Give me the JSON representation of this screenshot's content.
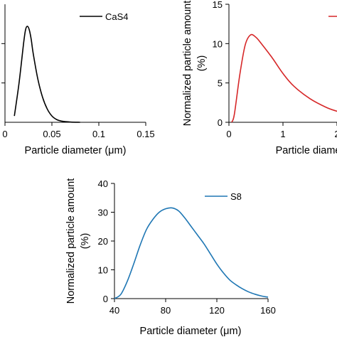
{
  "chart_data": [
    {
      "type": "line",
      "xlabel": "Particle diameter (μm)",
      "ylabel": "",
      "xlim": [
        0,
        0.15
      ],
      "ylim": [
        0,
        15
      ],
      "x_ticks": [
        "0",
        "0.05",
        "0.1",
        "0.15"
      ],
      "y_ticks": [],
      "legend_position": "top-right",
      "series": [
        {
          "name": "CaS4",
          "color": "#000000",
          "x": [
            0.01,
            0.015,
            0.02,
            0.022,
            0.024,
            0.026,
            0.028,
            0.03,
            0.035,
            0.04,
            0.045,
            0.05,
            0.055,
            0.06,
            0.07,
            0.08
          ],
          "values": [
            0.8,
            5.0,
            10.2,
            11.8,
            12.2,
            11.7,
            10.5,
            8.8,
            5.5,
            3.2,
            1.7,
            0.8,
            0.35,
            0.15,
            0.03,
            0.0
          ]
        }
      ]
    },
    {
      "type": "line",
      "xlabel": "Particle diameter",
      "ylabel": "Normalized particle amount (%)",
      "xlim": [
        0,
        2
      ],
      "ylim": [
        0,
        15
      ],
      "x_ticks": [
        "0",
        "1",
        "2"
      ],
      "y_ticks": [
        "0",
        "5",
        "10",
        "15"
      ],
      "legend_position": "top-right",
      "series": [
        {
          "color": "#d62728",
          "x": [
            0.05,
            0.1,
            0.2,
            0.3,
            0.4,
            0.5,
            0.6,
            0.8,
            1.0,
            1.2,
            1.5,
            1.8,
            2.0,
            2.1
          ],
          "values": [
            0,
            1.0,
            6.0,
            9.8,
            11.1,
            10.8,
            10.0,
            8.2,
            6.2,
            4.6,
            3.0,
            1.9,
            1.4,
            1.2
          ]
        }
      ]
    },
    {
      "type": "line",
      "xlabel": "Particle diameter (μm)",
      "ylabel": "Normalized particle amount (%)",
      "xlim": [
        40,
        160
      ],
      "ylim": [
        0,
        40
      ],
      "x_ticks": [
        "40",
        "80",
        "120",
        "160"
      ],
      "y_ticks": [
        "0",
        "10",
        "20",
        "30",
        "40"
      ],
      "legend_position": "top-right",
      "series": [
        {
          "name": "S8",
          "color": "#1f77b4",
          "x": [
            40,
            45,
            50,
            55,
            60,
            65,
            70,
            75,
            80,
            85,
            90,
            95,
            100,
            105,
            110,
            115,
            120,
            125,
            130,
            135,
            140,
            145,
            150,
            155,
            160
          ],
          "values": [
            0,
            1.5,
            6.0,
            12.0,
            18.5,
            24.0,
            27.5,
            30.0,
            31.2,
            31.5,
            30.5,
            28.0,
            25.0,
            22.0,
            19.0,
            15.5,
            12.0,
            9.0,
            6.5,
            4.8,
            3.4,
            2.3,
            1.5,
            0.9,
            0.5
          ]
        }
      ]
    }
  ]
}
